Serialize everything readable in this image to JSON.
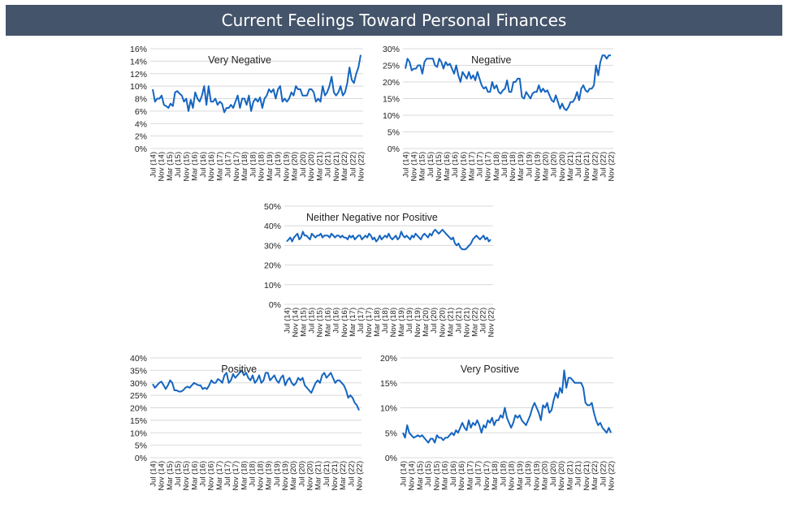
{
  "header": {
    "title": "Current Feelings Toward Personal Finances"
  },
  "colors": {
    "banner": "#44546a",
    "line": "#1565c0",
    "grid": "#d9d9d9"
  },
  "x_tick_labels": [
    "Jul (14)",
    "Nov (14)",
    "Mar (15)",
    "Jul (15)",
    "Nov (15)",
    "Mar (16)",
    "Jul (16)",
    "Nov (16)",
    "Mar (17)",
    "Jul (17)",
    "Nov (17)",
    "Mar (18)",
    "Jul (18)",
    "Nov (18)",
    "Mar (19)",
    "Jul (19)",
    "Nov (19)",
    "Mar (20)",
    "Jul (20)",
    "Nov (20)",
    "Mar (21)",
    "Jul (21)",
    "Nov (21)",
    "Mar (22)",
    "Jul (22)",
    "Nov (22)"
  ],
  "chart_data": [
    {
      "type": "line",
      "title": "Very Negative",
      "ylim": [
        0,
        16
      ],
      "y_ticks": [
        "0%",
        "2%",
        "4%",
        "6%",
        "8%",
        "10%",
        "12%",
        "14%",
        "16%"
      ],
      "grid": true,
      "series": [
        {
          "values": [
            9.5,
            7.5,
            8,
            8,
            8.5,
            7,
            6.8,
            6.5,
            7.2,
            6.8,
            9,
            9.2,
            8.8,
            8.5,
            7.5,
            8,
            6,
            7.8,
            6.5,
            9,
            8,
            7.5,
            8.5,
            10,
            7,
            10,
            7.5,
            7.5,
            8,
            7,
            7.5,
            7.2,
            5.8,
            6.5,
            6.5,
            7,
            6.5,
            7.5,
            8.5,
            6.5,
            8,
            8,
            7,
            8.5,
            6,
            7.5,
            8,
            7.5,
            8.2,
            6.5,
            8,
            8.5,
            9.5,
            9,
            9.5,
            8,
            9.5,
            10,
            7.5,
            8,
            7.5,
            8,
            9,
            8.5,
            10,
            9.5,
            9.5,
            8.5,
            8.5,
            8.5,
            9.5,
            9.5,
            9,
            7.5,
            8,
            7.5,
            10,
            8.5,
            9,
            10,
            11.5,
            9,
            8.5,
            9,
            10,
            8.5,
            9,
            10.5,
            13,
            11,
            10.5,
            12,
            13,
            15
          ]
        }
      ]
    },
    {
      "type": "line",
      "title": "Negative",
      "ylim": [
        0,
        30
      ],
      "y_ticks": [
        "0%",
        "5%",
        "10%",
        "15%",
        "20%",
        "25%",
        "30%"
      ],
      "grid": true,
      "series": [
        {
          "values": [
            24,
            27,
            26,
            23.5,
            24,
            24,
            25,
            25,
            22.5,
            26,
            27,
            27,
            27,
            27,
            25,
            24.5,
            27,
            26,
            24,
            26,
            25,
            25.5,
            24,
            22.5,
            25,
            22,
            20,
            23,
            22,
            21,
            23,
            21,
            22,
            20.5,
            23,
            21,
            19,
            18,
            18.5,
            17,
            17,
            20,
            18,
            19,
            17,
            16.5,
            17.5,
            18,
            20.5,
            17,
            17,
            20,
            20,
            21,
            21,
            15.5,
            15,
            17,
            16,
            15,
            16.5,
            17,
            17,
            19,
            17,
            18,
            17,
            17.5,
            16,
            14.5,
            14,
            16,
            14,
            12,
            13.5,
            12,
            11.5,
            12.5,
            14,
            14,
            15,
            17,
            14.5,
            18,
            19,
            17.5,
            17,
            18,
            18,
            19,
            25,
            22,
            26,
            28,
            28,
            27,
            28,
            28
          ]
        }
      ]
    },
    {
      "type": "line",
      "title": "Neither Negative nor Positive",
      "ylim": [
        0,
        50
      ],
      "y_ticks": [
        "0%",
        "10%",
        "20%",
        "30%",
        "40%",
        "50%"
      ],
      "grid": true,
      "series": [
        {
          "values": [
            32,
            33,
            34,
            32,
            34,
            35,
            36,
            33,
            34,
            37,
            35,
            35,
            34,
            33,
            36,
            35,
            34,
            35,
            35,
            36,
            34,
            35,
            35,
            35,
            34,
            36,
            35,
            34,
            35,
            35,
            34,
            35,
            34,
            34,
            33,
            35,
            34,
            35,
            33,
            34,
            35,
            35,
            33,
            34,
            35,
            34,
            36,
            35,
            33,
            34,
            32,
            33,
            35,
            33,
            34,
            35,
            34,
            36,
            34,
            33,
            34,
            35,
            33,
            34,
            37,
            35,
            34,
            35,
            34,
            33,
            35,
            34,
            36,
            35,
            34,
            33,
            35,
            36,
            35,
            34,
            36,
            35,
            37,
            38,
            37,
            36,
            37,
            38,
            37,
            36,
            35,
            34,
            33,
            34,
            31,
            30,
            31,
            29,
            28,
            28,
            28,
            29,
            30,
            31,
            33,
            34,
            35,
            34,
            33,
            34,
            35,
            33,
            34,
            32,
            33
          ]
        }
      ]
    },
    {
      "type": "line",
      "title": "Positive",
      "ylim": [
        0,
        40
      ],
      "y_ticks": [
        "0%",
        "5%",
        "10%",
        "15%",
        "20%",
        "25%",
        "30%",
        "35%",
        "40%"
      ],
      "grid": true,
      "series": [
        {
          "values": [
            29.5,
            28,
            29,
            30,
            30.5,
            29,
            27.5,
            29,
            31,
            30,
            27,
            27,
            26.5,
            26.5,
            27,
            28,
            28.5,
            28,
            29,
            30,
            29.5,
            29,
            29,
            27.5,
            28,
            27.5,
            29,
            31,
            30,
            30,
            31.5,
            31,
            30,
            33,
            34,
            30,
            31,
            33.5,
            32,
            33,
            34,
            35,
            33,
            34,
            32,
            31,
            33,
            30,
            31,
            33,
            30,
            31,
            34,
            34,
            31,
            32,
            33,
            31,
            30,
            32,
            33,
            29,
            31,
            32,
            30,
            29,
            30,
            32,
            31,
            32,
            29,
            28,
            27,
            26,
            28,
            30,
            31,
            30,
            33,
            34,
            32,
            33,
            34,
            32,
            30,
            31,
            31,
            30,
            29,
            27,
            24,
            25,
            24,
            22,
            21,
            19
          ]
        }
      ]
    },
    {
      "type": "line",
      "title": "Very Positive",
      "ylim": [
        0,
        20
      ],
      "y_ticks": [
        "0%",
        "5%",
        "10%",
        "15%",
        "20%"
      ],
      "grid": true,
      "series": [
        {
          "values": [
            5,
            4,
            6.5,
            5,
            4.5,
            4,
            4.2,
            4.5,
            4.2,
            4.5,
            4,
            3.5,
            3,
            3.8,
            3.8,
            3,
            4.5,
            4,
            4,
            3.5,
            4,
            4,
            4.5,
            5,
            4.5,
            5.5,
            5,
            6,
            7,
            6,
            5.5,
            7.5,
            6,
            7,
            6.5,
            7.5,
            6.5,
            5,
            6.5,
            6,
            7.5,
            7,
            8,
            6.5,
            7.5,
            7.5,
            8.5,
            8,
            10,
            8,
            7,
            6,
            7,
            8.5,
            8,
            8.5,
            7.5,
            7,
            6.5,
            7.5,
            8.5,
            10,
            11,
            10,
            9,
            7.5,
            10.5,
            10,
            11,
            9,
            9.5,
            11.5,
            13,
            12,
            14,
            13,
            17.5,
            14,
            16,
            16,
            15.5,
            15,
            15,
            15,
            15,
            14,
            11,
            10.5,
            10.5,
            11,
            9,
            7.5,
            6.5,
            7,
            6,
            5.5,
            5,
            6,
            5
          ]
        }
      ]
    }
  ]
}
